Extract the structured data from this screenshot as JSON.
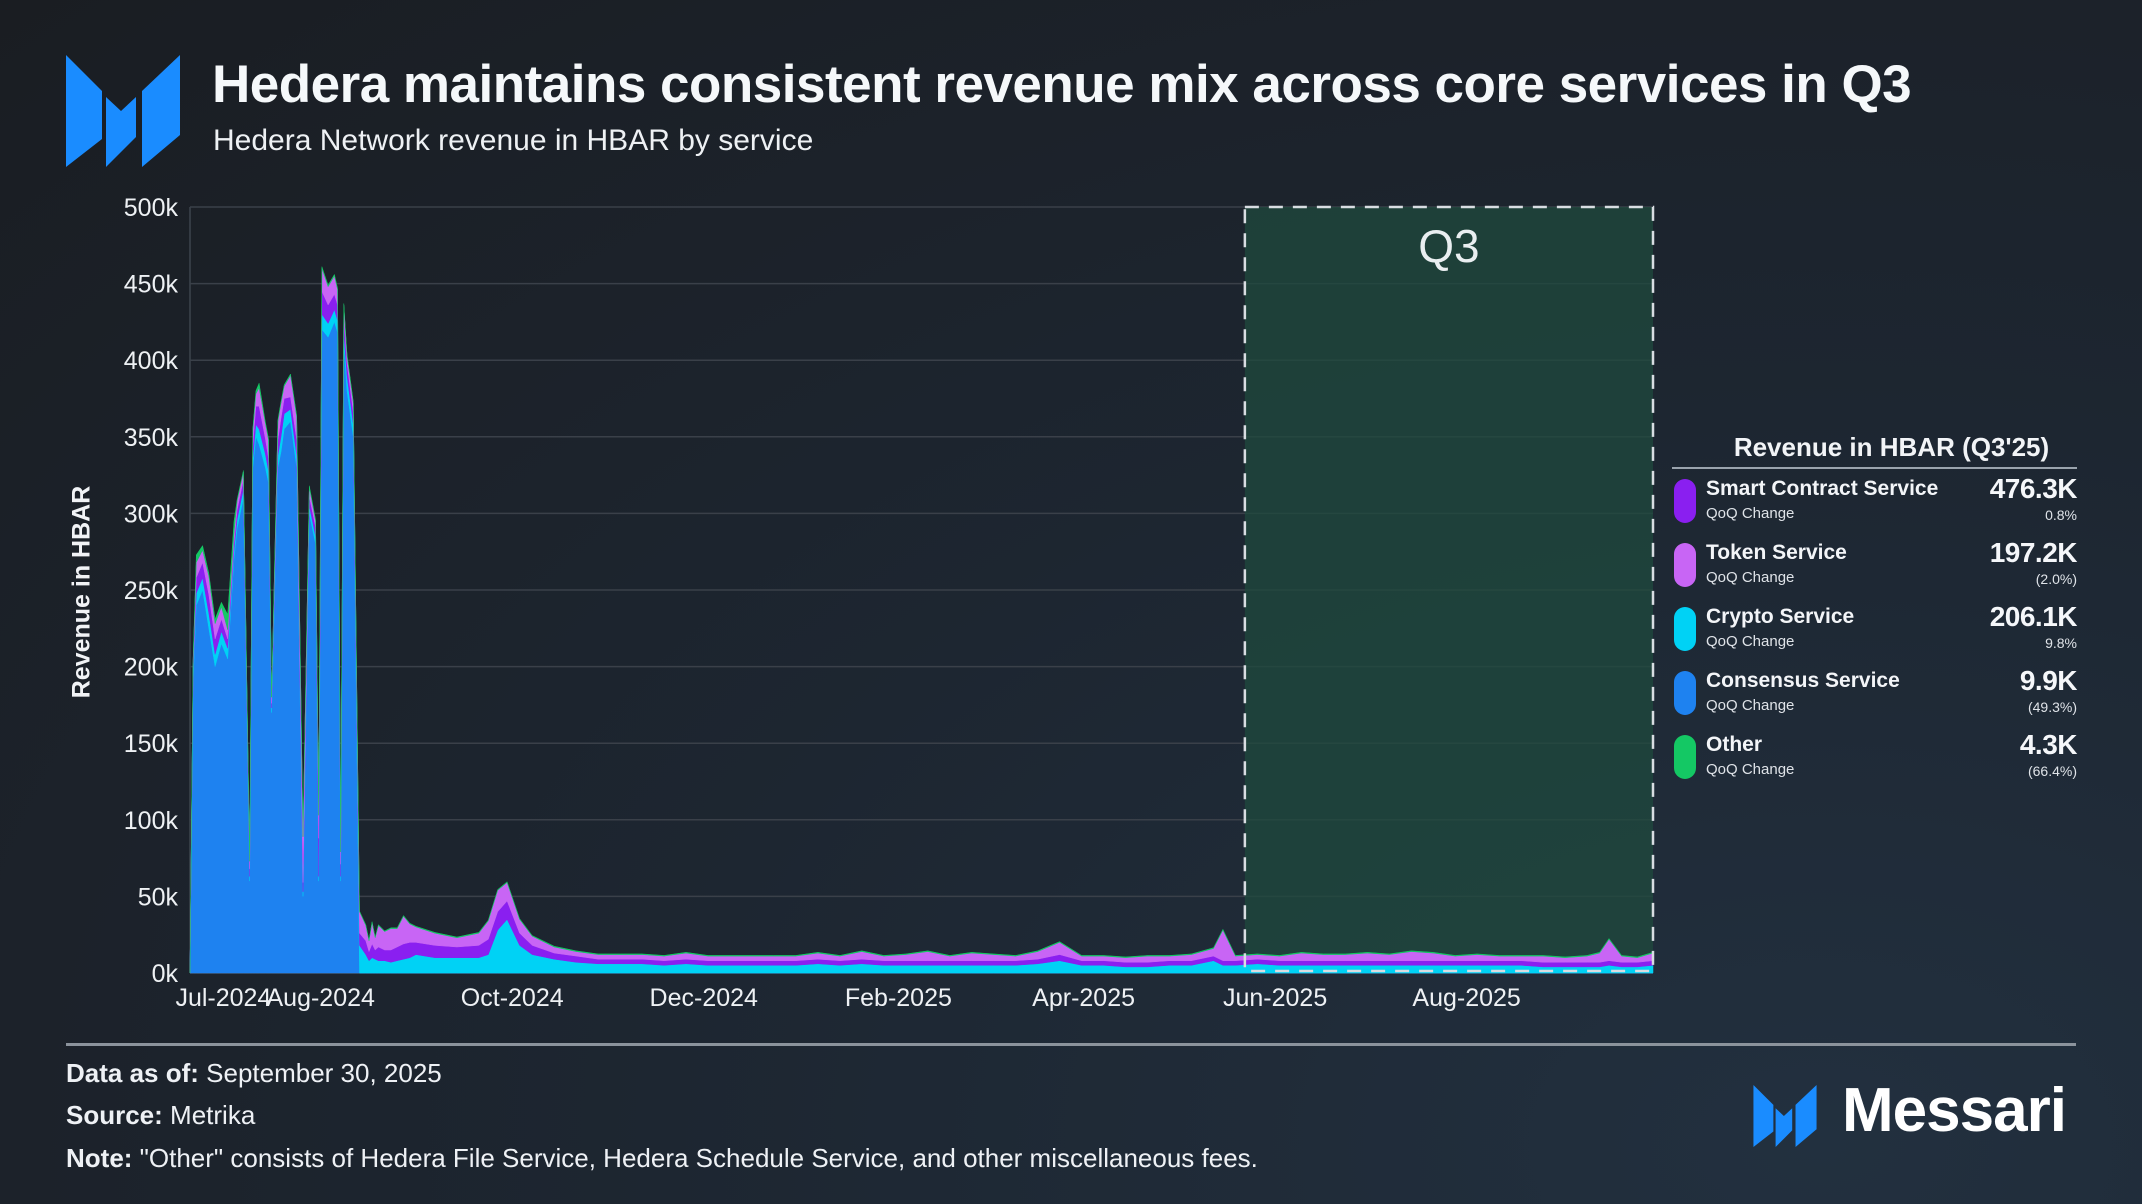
{
  "header": {
    "title": "Hedera maintains consistent revenue mix across core services in Q3",
    "subtitle": "Hedera Network revenue in HBAR by service"
  },
  "legend": {
    "title": "Revenue in HBAR (Q3'25)",
    "items": [
      {
        "name": "Smart Contract Service",
        "sub": "QoQ Change",
        "value": "476.3K",
        "change": "0.8%",
        "color": "#8a1ff0"
      },
      {
        "name": "Token Service",
        "sub": "QoQ Change",
        "value": "197.2K",
        "change": "(2.0%)",
        "color": "#c865f5"
      },
      {
        "name": "Crypto Service",
        "sub": "QoQ Change",
        "value": "206.1K",
        "change": "9.8%",
        "color": "#00d2f5"
      },
      {
        "name": "Consensus Service",
        "sub": "QoQ Change",
        "value": "9.9K",
        "change": "(49.3%)",
        "color": "#1e82f0"
      },
      {
        "name": "Other",
        "sub": "QoQ Change",
        "value": "4.3K",
        "change": "(66.4%)",
        "color": "#14c864"
      }
    ]
  },
  "footer": {
    "data_as_of_label": "Data as of:",
    "data_as_of_value": " September 30, 2025",
    "source_label": "Source:",
    "source_value": " Metrika",
    "note_label": "Note:",
    "note_value": " \"Other\" consists of Hedera File Service, Hedera Schedule Service, and other miscellaneous fees."
  },
  "brand": {
    "name": "Messari",
    "logo_color": "#1a8cff"
  },
  "chart_data": {
    "type": "area",
    "stacked": true,
    "title": "Hedera maintains consistent revenue mix across core services in Q3",
    "subtitle": "Hedera Network revenue in HBAR by service",
    "xlabel": "",
    "ylabel": "Revenue in HBAR",
    "ylim": [
      0,
      500000
    ],
    "yticks": [
      0,
      50000,
      100000,
      150000,
      200000,
      250000,
      300000,
      350000,
      400000,
      450000,
      500000
    ],
    "ytick_labels": [
      "0k",
      "50k",
      "100k",
      "150k",
      "200k",
      "250k",
      "300k",
      "350k",
      "400k",
      "450k",
      "500k"
    ],
    "xlim": [
      "2024-06-21",
      "2025-09-30"
    ],
    "xticks": [
      "2024-07-01",
      "2024-08-01",
      "2024-10-01",
      "2024-12-01",
      "2025-02-01",
      "2025-04-01",
      "2025-06-01",
      "2025-08-01"
    ],
    "xtick_labels": [
      "Jul-2024",
      "Aug-2024",
      "Oct-2024",
      "Dec-2024",
      "Feb-2025",
      "Apr-2025",
      "Jun-2025",
      "Aug-2025"
    ],
    "grid": true,
    "highlight": {
      "label": "Q3",
      "from": "2025-05-23",
      "to": "2025-09-30",
      "color": "#1f4a3e"
    },
    "stack_order": [
      "Consensus Service",
      "Crypto Service",
      "Smart Contract Service",
      "Token Service",
      "Other"
    ],
    "x": [
      "2024-06-21",
      "2024-06-22",
      "2024-06-23",
      "2024-06-25",
      "2024-06-27",
      "2024-06-29",
      "2024-07-01",
      "2024-07-03",
      "2024-07-05",
      "2024-07-06",
      "2024-07-08",
      "2024-07-10",
      "2024-07-11",
      "2024-07-12",
      "2024-07-13",
      "2024-07-15",
      "2024-07-16",
      "2024-07-17",
      "2024-07-19",
      "2024-07-20",
      "2024-07-21",
      "2024-07-23",
      "2024-07-25",
      "2024-07-27",
      "2024-07-29",
      "2024-07-31",
      "2024-08-01",
      "2024-08-02",
      "2024-08-04",
      "2024-08-06",
      "2024-08-07",
      "2024-08-08",
      "2024-08-09",
      "2024-08-10",
      "2024-08-12",
      "2024-08-14",
      "2024-08-16",
      "2024-08-17",
      "2024-08-18",
      "2024-08-19",
      "2024-08-20",
      "2024-08-22",
      "2024-08-24",
      "2024-08-26",
      "2024-08-28",
      "2024-08-30",
      "2024-09-01",
      "2024-09-07",
      "2024-09-14",
      "2024-09-21",
      "2024-09-24",
      "2024-09-27",
      "2024-09-30",
      "2024-10-04",
      "2024-10-08",
      "2024-10-15",
      "2024-10-22",
      "2024-10-29",
      "2024-11-05",
      "2024-11-12",
      "2024-11-19",
      "2024-11-26",
      "2024-12-03",
      "2024-12-10",
      "2024-12-17",
      "2024-12-24",
      "2024-12-31",
      "2025-01-07",
      "2025-01-14",
      "2025-01-21",
      "2025-01-28",
      "2025-02-04",
      "2025-02-11",
      "2025-02-18",
      "2025-02-25",
      "2025-03-04",
      "2025-03-11",
      "2025-03-18",
      "2025-03-25",
      "2025-04-01",
      "2025-04-08",
      "2025-04-15",
      "2025-04-22",
      "2025-04-29",
      "2025-05-06",
      "2025-05-13",
      "2025-05-16",
      "2025-05-20",
      "2025-05-27",
      "2025-06-03",
      "2025-06-10",
      "2025-06-17",
      "2025-06-24",
      "2025-07-01",
      "2025-07-08",
      "2025-07-15",
      "2025-07-22",
      "2025-07-29",
      "2025-08-05",
      "2025-08-12",
      "2025-08-19",
      "2025-08-26",
      "2025-09-02",
      "2025-09-09",
      "2025-09-13",
      "2025-09-16",
      "2025-09-20",
      "2025-09-25",
      "2025-09-30"
    ],
    "series": [
      {
        "name": "Consensus Service",
        "color": "#1e82f0",
        "values": [
          0,
          190000,
          240000,
          250000,
          225000,
          200000,
          215000,
          205000,
          270000,
          290000,
          310000,
          60000,
          330000,
          350000,
          345000,
          330000,
          320000,
          170000,
          330000,
          340000,
          355000,
          360000,
          330000,
          50000,
          300000,
          280000,
          60000,
          420000,
          415000,
          425000,
          418000,
          60000,
          410000,
          380000,
          350000,
          0,
          0,
          0,
          0,
          0,
          0,
          0,
          0,
          0,
          0,
          0,
          0,
          0,
          0,
          0,
          0,
          0,
          0,
          0,
          0,
          0,
          0,
          0,
          0,
          0,
          0,
          0,
          0,
          0,
          0,
          0,
          0,
          0,
          0,
          0,
          0,
          0,
          0,
          0,
          0,
          0,
          0,
          0,
          0,
          0,
          0,
          0,
          0,
          0,
          0,
          0,
          0,
          0,
          0,
          0,
          0,
          0,
          0,
          0,
          0,
          0,
          0,
          0,
          0,
          0,
          0,
          0,
          0,
          0,
          0,
          0,
          0,
          0,
          0
        ]
      },
      {
        "name": "Crypto Service",
        "color": "#00d2f5",
        "values": [
          0,
          5000,
          8000,
          8000,
          10000,
          8000,
          8000,
          7000,
          6000,
          6000,
          6000,
          3000,
          6000,
          8000,
          10000,
          9000,
          8000,
          3000,
          8000,
          10000,
          10000,
          8000,
          8000,
          3000,
          5000,
          5000,
          3000,
          10000,
          9000,
          8000,
          8000,
          3000,
          8000,
          10000,
          8000,
          18000,
          12000,
          8000,
          10000,
          9000,
          8000,
          8000,
          7000,
          8000,
          9000,
          10000,
          12000,
          10000,
          10000,
          10000,
          12000,
          28000,
          35000,
          18000,
          12000,
          9000,
          7000,
          6000,
          6000,
          6000,
          5000,
          6000,
          5000,
          5000,
          5000,
          5000,
          5000,
          6000,
          5000,
          6000,
          5000,
          5000,
          5000,
          5000,
          5000,
          5000,
          5000,
          6000,
          8000,
          5000,
          5000,
          4000,
          4000,
          5000,
          5000,
          8000,
          5000,
          5000,
          6000,
          5000,
          5000,
          5000,
          5000,
          5000,
          5000,
          5000,
          5000,
          5000,
          5000,
          5000,
          5000,
          4000,
          4000,
          4000,
          4000,
          5000,
          4000,
          4000,
          5000
        ]
      },
      {
        "name": "Smart Contract Service",
        "color": "#8a1ff0",
        "values": [
          0,
          5000,
          10000,
          10000,
          12000,
          10000,
          8000,
          6000,
          5000,
          6000,
          6000,
          5000,
          8000,
          12000,
          15000,
          10000,
          8000,
          3000,
          10000,
          12000,
          10000,
          8000,
          10000,
          6000,
          6000,
          6000,
          25000,
          15000,
          12000,
          10000,
          10000,
          8000,
          10000,
          8000,
          8000,
          8000,
          9000,
          6000,
          9000,
          6000,
          9000,
          7000,
          8000,
          9000,
          10000,
          10000,
          8000,
          8000,
          7000,
          8000,
          10000,
          12000,
          12000,
          8000,
          6000,
          4000,
          4000,
          3000,
          3000,
          3000,
          3000,
          3000,
          3000,
          3000,
          3000,
          3000,
          3000,
          3000,
          3000,
          3000,
          3000,
          3000,
          3000,
          3000,
          3000,
          3000,
          3000,
          3000,
          4000,
          3000,
          3000,
          3000,
          3000,
          3000,
          3000,
          3000,
          3000,
          3000,
          3000,
          3000,
          3000,
          3000,
          3000,
          3000,
          3000,
          3000,
          3000,
          3000,
          3000,
          3000,
          3000,
          3000,
          3000,
          3000,
          3000,
          3000,
          3000,
          3000,
          3000
        ]
      },
      {
        "name": "Token Service",
        "color": "#c865f5",
        "values": [
          0,
          4000,
          10000,
          8000,
          12000,
          10000,
          8000,
          6000,
          6000,
          6000,
          5000,
          5000,
          10000,
          8000,
          12000,
          10000,
          12000,
          4000,
          12000,
          10000,
          8000,
          14000,
          15000,
          30000,
          6000,
          4000,
          15000,
          15000,
          12000,
          12000,
          10000,
          8000,
          8000,
          5000,
          6000,
          14000,
          10000,
          7000,
          14000,
          8000,
          14000,
          12000,
          14000,
          12000,
          18000,
          12000,
          10000,
          8000,
          6000,
          8000,
          12000,
          14000,
          12000,
          9000,
          6000,
          4000,
          3000,
          3000,
          3000,
          3000,
          3000,
          4000,
          3000,
          3000,
          3000,
          3000,
          3000,
          4000,
          3000,
          5000,
          3000,
          4000,
          6000,
          3000,
          5000,
          4000,
          3000,
          5000,
          8000,
          3000,
          3000,
          3000,
          4000,
          3000,
          4000,
          5000,
          20000,
          3000,
          3000,
          3000,
          5000,
          4000,
          4000,
          5000,
          4000,
          6000,
          5000,
          3000,
          4000,
          3000,
          3000,
          4000,
          3000,
          4000,
          6000,
          14000,
          4000,
          3000,
          5000
        ]
      },
      {
        "name": "Other",
        "color": "#14c864",
        "values": [
          0,
          1000,
          5000,
          3000,
          2000,
          3000,
          3000,
          10000,
          8000,
          1000,
          1000,
          0,
          1000,
          2000,
          3000,
          1000,
          1000,
          0,
          1000,
          1000,
          1000,
          1000,
          1000,
          0,
          1000,
          1000,
          0,
          1000,
          1000,
          1000,
          1000,
          0,
          1000,
          1000,
          1000,
          500,
          500,
          500,
          500,
          500,
          500,
          500,
          500,
          500,
          500,
          500,
          500,
          500,
          500,
          500,
          500,
          500,
          500,
          500,
          500,
          500,
          500,
          500,
          500,
          500,
          500,
          500,
          500,
          500,
          500,
          500,
          500,
          500,
          500,
          500,
          500,
          500,
          500,
          500,
          500,
          500,
          500,
          500,
          500,
          500,
          500,
          500,
          500,
          500,
          500,
          500,
          500,
          500,
          500,
          500,
          500,
          500,
          500,
          500,
          500,
          500,
          500,
          500,
          500,
          500,
          500,
          500,
          500,
          500,
          500,
          500,
          500,
          500,
          500
        ]
      }
    ]
  }
}
